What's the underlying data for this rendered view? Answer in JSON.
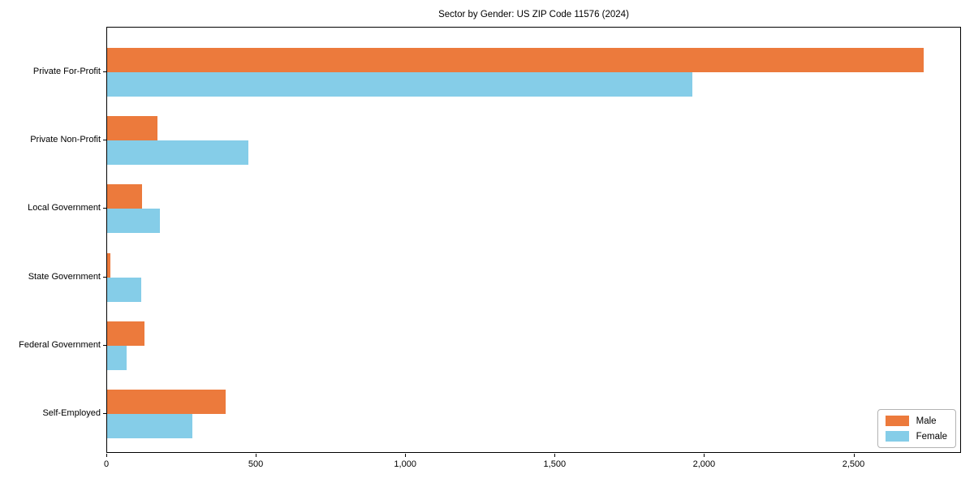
{
  "title": "Sector by Gender: US ZIP Code 11576 (2024)",
  "colors": {
    "male": "#ec7a3c",
    "female": "#85cde8",
    "axis": "#000000",
    "legend_border": "#b3b3b3",
    "background": "#ffffff"
  },
  "legend": {
    "position": "lower right",
    "items": [
      {
        "label": "Male",
        "color": "#ec7a3c"
      },
      {
        "label": "Female",
        "color": "#85cde8"
      }
    ]
  },
  "chart_data": {
    "type": "bar",
    "orientation": "horizontal",
    "title": "Sector by Gender: US ZIP Code 11576 (2024)",
    "categories": [
      "Private For-Profit",
      "Private Non-Profit",
      "Local Government",
      "State Government",
      "Federal Government",
      "Self-Employed"
    ],
    "series": [
      {
        "name": "Male",
        "color": "#ec7a3c",
        "values": [
          2731,
          168,
          117,
          11,
          126,
          396
        ]
      },
      {
        "name": "Female",
        "color": "#85cde8",
        "values": [
          1957,
          473,
          177,
          113,
          65,
          285
        ]
      }
    ],
    "x_ticks": [
      0,
      500,
      1000,
      1500,
      2000,
      2500
    ],
    "x_tick_labels": [
      "0",
      "500",
      "1,000",
      "1,500",
      "2,000",
      "2,500"
    ],
    "xlabel": "",
    "ylabel": "",
    "xlim": [
      0,
      2860
    ],
    "grid": false,
    "legend_position": "lower right"
  }
}
